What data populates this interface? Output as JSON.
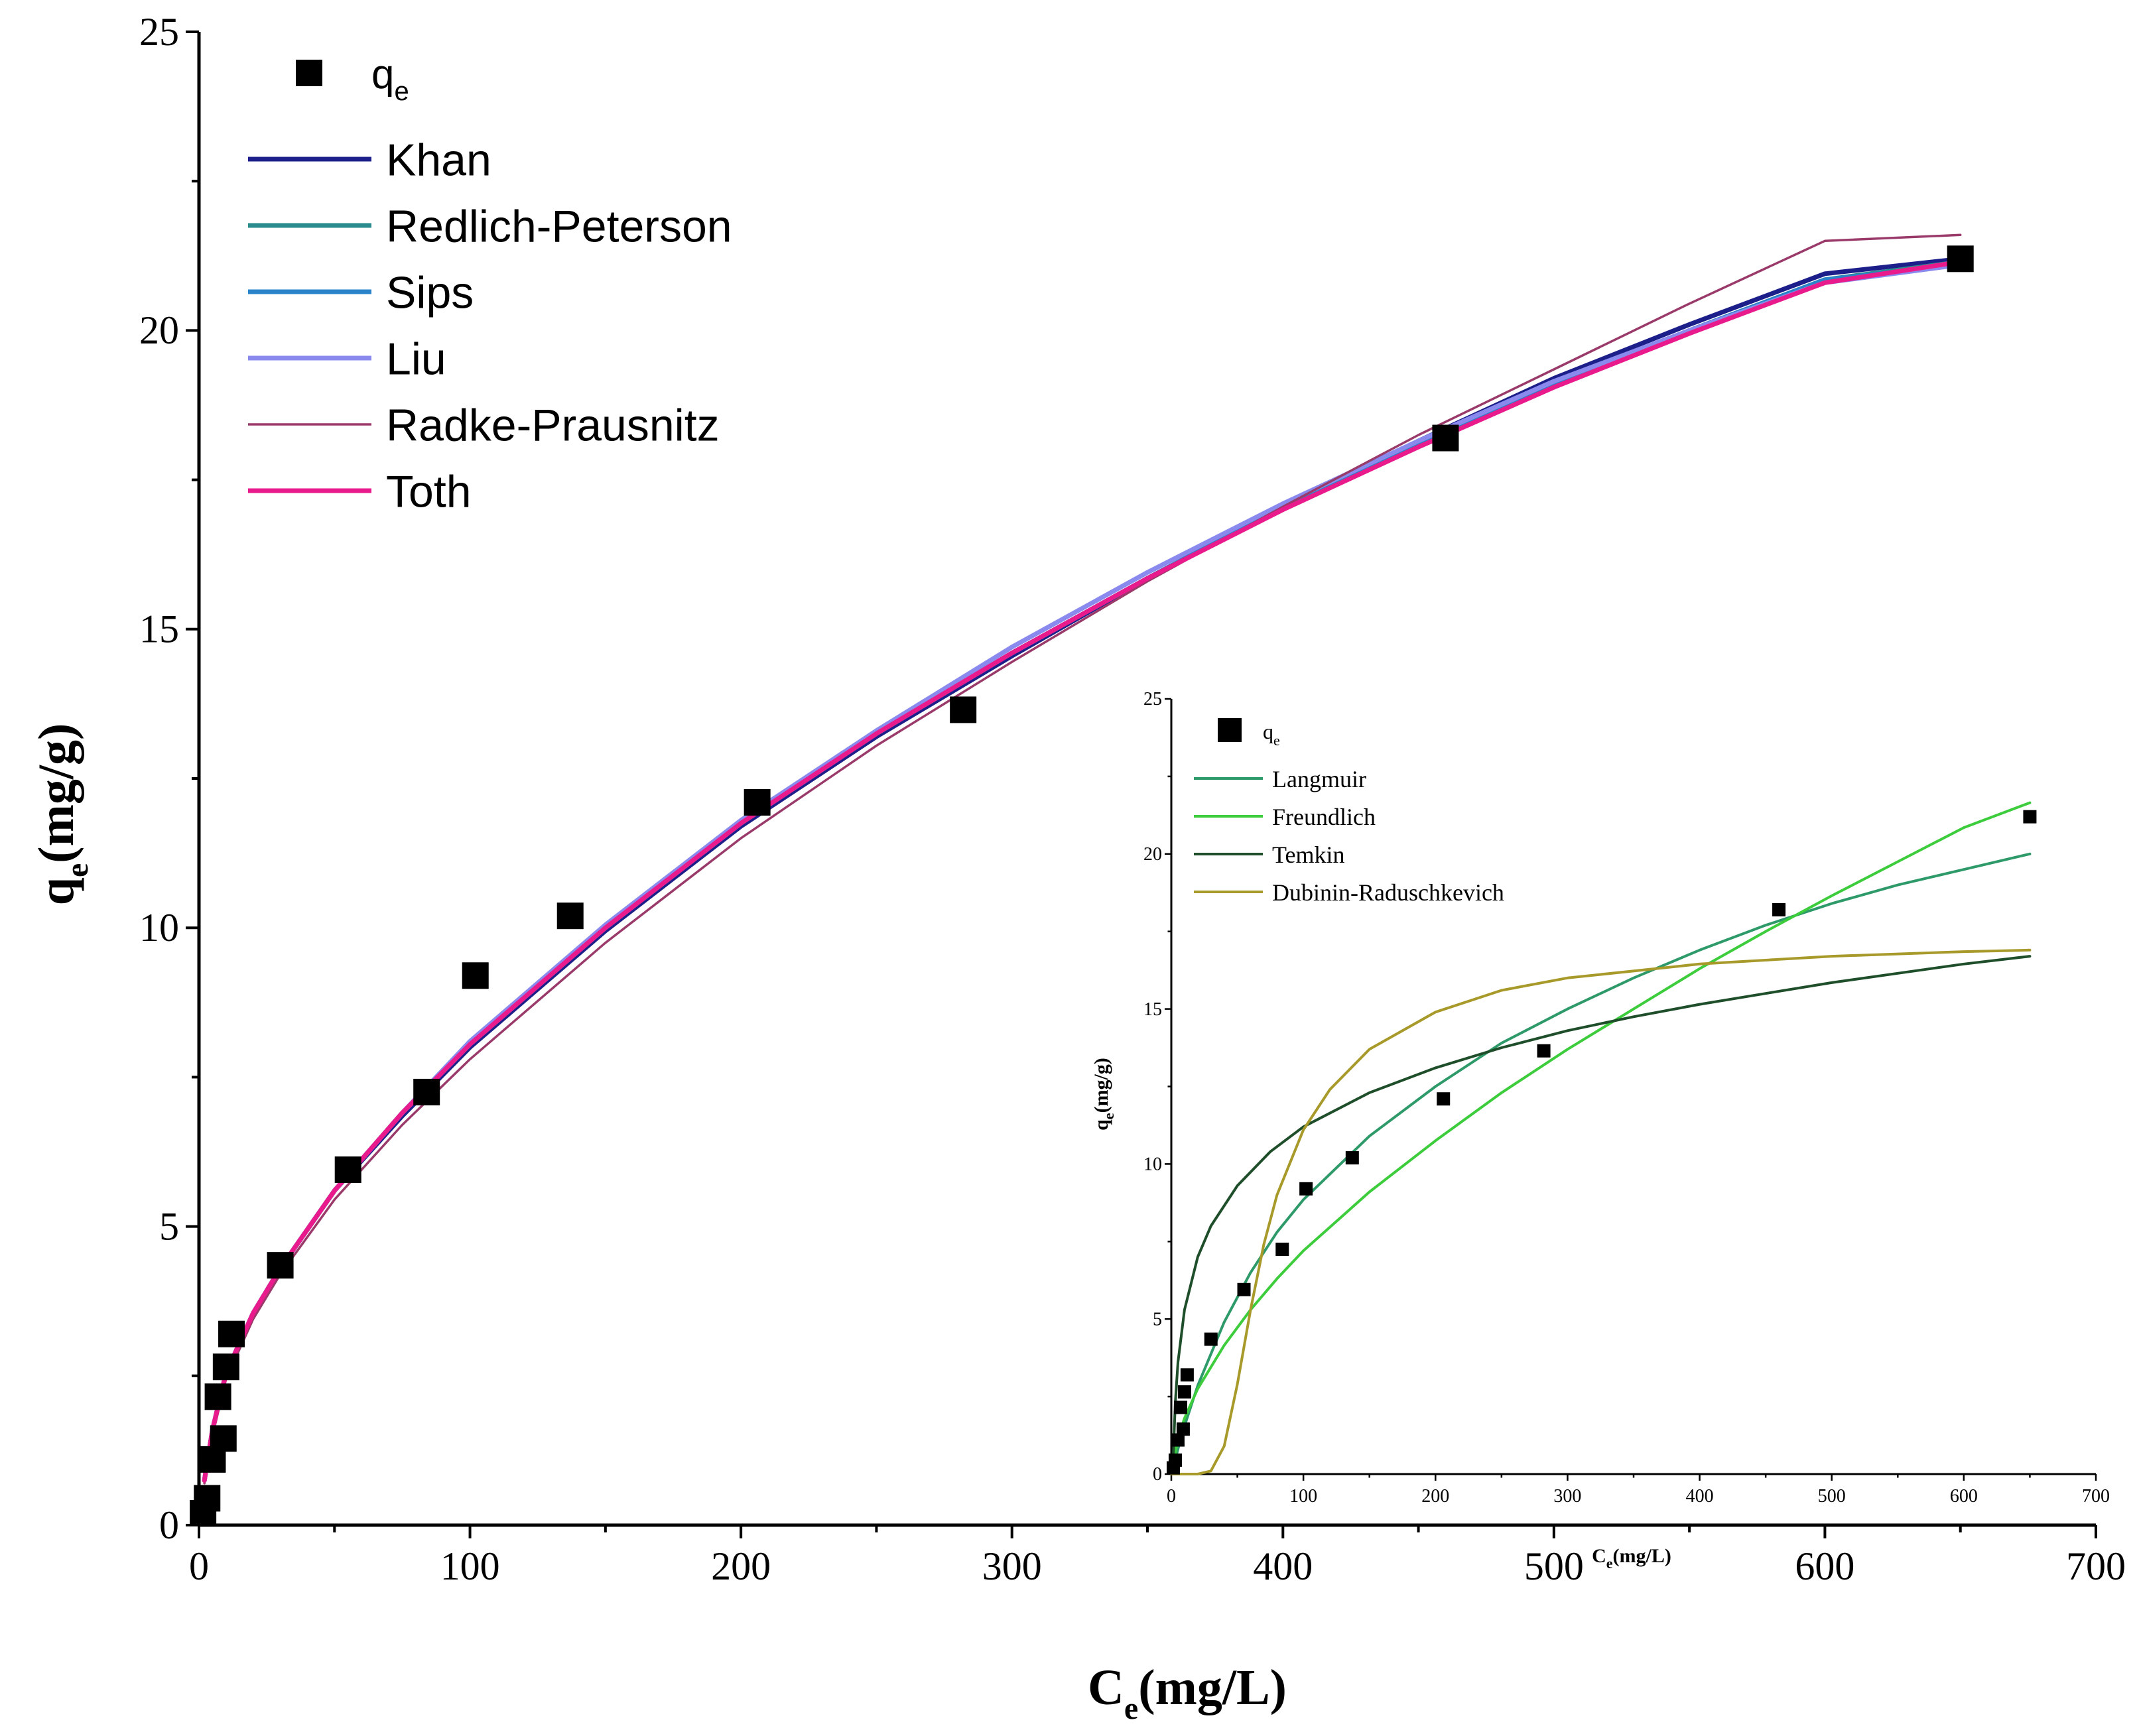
{
  "chart_data": [
    {
      "type": "scatter",
      "title": "",
      "xlabel": "C",
      "xlabel_sub": "e",
      "xlabel_unit": "(mg/L)",
      "ylabel": "q",
      "ylabel_sub": "e",
      "ylabel_unit": "(mg/g)",
      "xlim": [
        0,
        700
      ],
      "ylim": [
        0,
        25
      ],
      "xticks": [
        "0",
        "100",
        "200",
        "300",
        "400",
        "500",
        "600",
        "700"
      ],
      "yticks": [
        "0",
        "5",
        "10",
        "15",
        "20",
        "25"
      ],
      "legend_position": "top-left",
      "legend_points_label": "q",
      "legend_points_sub": "e",
      "points": {
        "x": [
          1.5,
          3,
          5,
          7,
          9,
          10,
          12,
          30,
          55,
          84,
          102,
          137,
          206,
          282,
          460,
          650
        ],
        "y": [
          0.2,
          0.45,
          1.1,
          2.15,
          1.45,
          2.65,
          3.2,
          4.35,
          5.95,
          7.25,
          9.2,
          10.2,
          12.1,
          13.65,
          18.2,
          21.2
        ]
      },
      "series": [
        {
          "name": "Khan",
          "color": "#1c1f8a",
          "x": [
            2,
            5,
            10,
            20,
            30,
            50,
            75,
            100,
            150,
            200,
            250,
            300,
            350,
            400,
            450,
            500,
            550,
            600,
            650
          ],
          "y": [
            0.75,
            1.6,
            2.55,
            3.55,
            4.3,
            5.6,
            6.85,
            8.0,
            9.95,
            11.7,
            13.2,
            14.55,
            15.85,
            17.05,
            18.15,
            19.2,
            20.1,
            20.95,
            21.2
          ]
        },
        {
          "name": "Redlich-Peterson",
          "color": "#2a8c8c",
          "x": [
            2,
            5,
            10,
            20,
            30,
            50,
            75,
            100,
            150,
            200,
            250,
            300,
            350,
            400,
            450,
            500,
            550,
            600,
            650
          ],
          "y": [
            0.75,
            1.6,
            2.55,
            3.55,
            4.3,
            5.6,
            6.9,
            8.05,
            10.0,
            11.75,
            13.25,
            14.6,
            15.85,
            17.05,
            18.1,
            19.1,
            20.0,
            20.85,
            21.15
          ]
        },
        {
          "name": "Sips",
          "color": "#2a82c8",
          "x": [
            2,
            5,
            10,
            20,
            30,
            50,
            75,
            100,
            150,
            200,
            250,
            300,
            350,
            400,
            450,
            500,
            550,
            600,
            650
          ],
          "y": [
            0.75,
            1.6,
            2.55,
            3.55,
            4.3,
            5.6,
            6.9,
            8.05,
            10.0,
            11.75,
            13.25,
            14.6,
            15.85,
            17.05,
            18.1,
            19.1,
            20.0,
            20.85,
            21.1
          ]
        },
        {
          "name": "Liu",
          "color": "#8a8aee",
          "x": [
            2,
            5,
            10,
            20,
            30,
            50,
            75,
            100,
            150,
            200,
            250,
            300,
            350,
            400,
            450,
            500,
            550,
            600,
            650
          ],
          "y": [
            0.75,
            1.6,
            2.55,
            3.55,
            4.3,
            5.6,
            6.9,
            8.1,
            10.05,
            11.8,
            13.3,
            14.7,
            15.95,
            17.1,
            18.15,
            19.15,
            20.0,
            20.8,
            21.1
          ]
        },
        {
          "name": "Radke-Prausnitz",
          "color": "#9a3a6a",
          "x": [
            2,
            5,
            10,
            20,
            30,
            50,
            75,
            100,
            150,
            200,
            250,
            300,
            350,
            400,
            450,
            500,
            550,
            600,
            650
          ],
          "y": [
            0.7,
            1.5,
            2.45,
            3.45,
            4.2,
            5.45,
            6.7,
            7.8,
            9.75,
            11.5,
            13.05,
            14.45,
            15.8,
            17.05,
            18.25,
            19.35,
            20.45,
            21.5,
            21.6
          ]
        },
        {
          "name": "Toth",
          "color": "#e81a8c",
          "x": [
            2,
            5,
            10,
            20,
            30,
            50,
            75,
            100,
            150,
            200,
            250,
            300,
            350,
            400,
            450,
            500,
            550,
            600,
            650
          ],
          "y": [
            0.75,
            1.6,
            2.55,
            3.55,
            4.3,
            5.6,
            6.9,
            8.05,
            10.0,
            11.75,
            13.25,
            14.6,
            15.85,
            17.0,
            18.05,
            19.05,
            19.95,
            20.8,
            21.15
          ]
        }
      ]
    },
    {
      "type": "scatter",
      "title": "",
      "xlabel": "C",
      "xlabel_sub": "e",
      "xlabel_unit": "(mg/L)",
      "ylabel": "q",
      "ylabel_sub": "e",
      "ylabel_unit": "(mg/g)",
      "xlim": [
        0,
        700
      ],
      "ylim": [
        0,
        25
      ],
      "xticks": [
        "0",
        "100",
        "200",
        "300",
        "400",
        "500",
        "600",
        "700"
      ],
      "yticks": [
        "0",
        "5",
        "10",
        "15",
        "20",
        "25"
      ],
      "legend_position": "top-left",
      "legend_points_label": "q",
      "legend_points_sub": "e",
      "points": {
        "x": [
          1.5,
          3,
          5,
          7,
          9,
          10,
          12,
          30,
          55,
          84,
          102,
          137,
          206,
          282,
          460,
          650
        ],
        "y": [
          0.2,
          0.45,
          1.1,
          2.15,
          1.45,
          2.65,
          3.2,
          4.35,
          5.95,
          7.25,
          9.2,
          10.2,
          12.1,
          13.65,
          18.2,
          21.2
        ]
      },
      "series": [
        {
          "name": "Langmuir",
          "color": "#2e9a6a",
          "x": [
            0,
            5,
            10,
            20,
            40,
            60,
            80,
            100,
            150,
            200,
            250,
            300,
            350,
            400,
            450,
            500,
            550,
            600,
            650
          ],
          "y": [
            0,
            0.8,
            1.55,
            2.85,
            4.9,
            6.5,
            7.8,
            8.85,
            10.9,
            12.5,
            13.9,
            15.0,
            16.0,
            16.9,
            17.7,
            18.4,
            19.0,
            19.5,
            20.0
          ]
        },
        {
          "name": "Freundlich",
          "color": "#3ccc3c",
          "x": [
            0,
            5,
            10,
            20,
            40,
            60,
            80,
            100,
            150,
            200,
            250,
            300,
            350,
            400,
            450,
            500,
            550,
            600,
            650
          ],
          "y": [
            0,
            1.15,
            1.8,
            2.75,
            4.15,
            5.3,
            6.3,
            7.2,
            9.1,
            10.75,
            12.3,
            13.7,
            15.0,
            16.3,
            17.5,
            18.65,
            19.75,
            20.85,
            21.65
          ]
        },
        {
          "name": "Temkin",
          "color": "#1e4e2a",
          "x": [
            1,
            3,
            5,
            10,
            20,
            30,
            50,
            75,
            100,
            150,
            200,
            250,
            300,
            350,
            400,
            450,
            500,
            550,
            600,
            650
          ],
          "y": [
            0,
            2.3,
            3.6,
            5.3,
            7.0,
            8.0,
            9.3,
            10.4,
            11.2,
            12.3,
            13.1,
            13.75,
            14.3,
            14.75,
            15.15,
            15.5,
            15.85,
            16.15,
            16.45,
            16.7
          ]
        },
        {
          "name": "Dubinin-Raduschkevich",
          "color": "#a89a2a",
          "x": [
            0,
            20,
            30,
            40,
            50,
            60,
            70,
            80,
            100,
            120,
            150,
            200,
            250,
            300,
            400,
            500,
            600,
            650
          ],
          "y": [
            0,
            0,
            0.1,
            0.9,
            2.9,
            5.3,
            7.4,
            9.0,
            11.1,
            12.4,
            13.7,
            14.9,
            15.6,
            16.0,
            16.45,
            16.7,
            16.85,
            16.9
          ]
        }
      ]
    }
  ]
}
